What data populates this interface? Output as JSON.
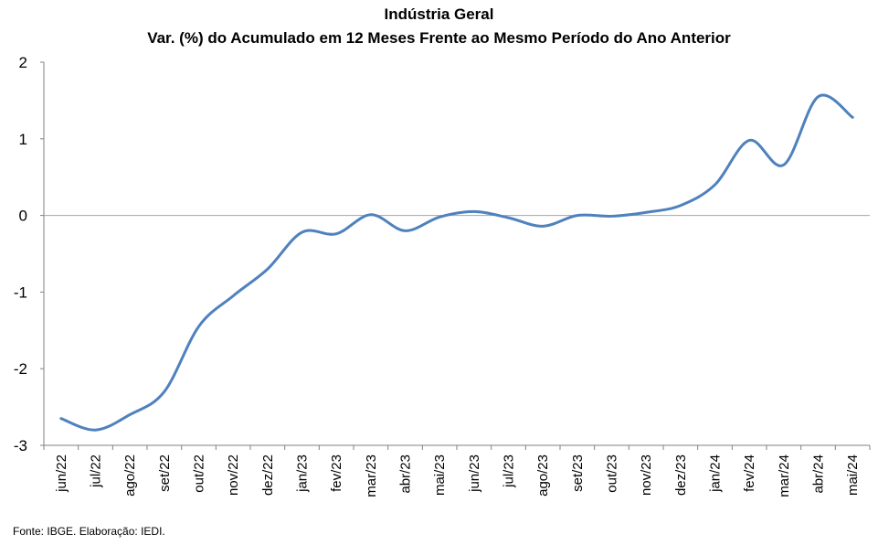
{
  "chart_data": {
    "type": "line",
    "title": "Indústria Geral",
    "subtitle": "Var. (%) do Acumulado em 12 Meses Frente ao Mesmo Período do Ano Anterior",
    "xlabel": "",
    "ylabel": "",
    "ylim": [
      -3,
      2
    ],
    "yticks": [
      2,
      1,
      0,
      -1,
      -2,
      -3
    ],
    "grid": false,
    "legend": "none",
    "categories": [
      "jun/22",
      "jul/22",
      "ago/22",
      "set/22",
      "out/22",
      "nov/22",
      "dez/22",
      "jan/23",
      "fev/23",
      "mar/23",
      "abr/23",
      "mai/23",
      "jun/23",
      "jul/23",
      "ago/23",
      "set/23",
      "out/23",
      "nov/23",
      "dez/23",
      "jan/24",
      "fev/24",
      "mar/24",
      "abr/24",
      "mai/24"
    ],
    "series": [
      {
        "values": [
          -2.65,
          -2.8,
          -2.6,
          -2.3,
          -1.45,
          -1.05,
          -0.7,
          -0.22,
          -0.24,
          0.01,
          -0.2,
          -0.02,
          0.05,
          -0.03,
          -0.14,
          0.0,
          -0.01,
          0.04,
          0.13,
          0.4,
          0.98,
          0.66,
          1.55,
          1.28
        ]
      }
    ],
    "colors": {
      "line": "#4f81bd",
      "zero_line": "#a6a6a6",
      "axis": "#808080"
    }
  },
  "footer": {
    "source": "Fonte: IBGE. Elaboração: IEDI."
  }
}
